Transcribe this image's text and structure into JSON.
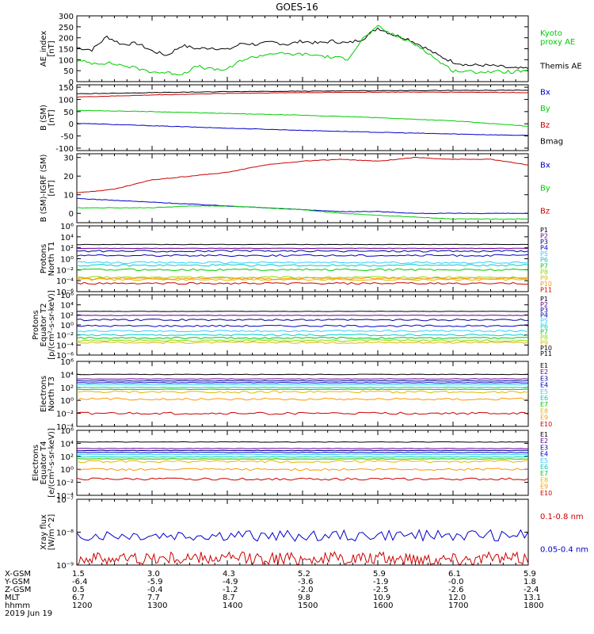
{
  "title": "GOES-16",
  "colors": {
    "black": "#000000",
    "blue": "#0000cc",
    "green": "#00cc00",
    "red": "#cc0000",
    "cyan": "#00cccc",
    "teal": "#009999",
    "yellow": "#cccc00",
    "orange": "#ff9900",
    "purple": "#660099",
    "darkblue": "#000099",
    "lightblue": "#33ccff",
    "lime": "#88dd00",
    "gold": "#ddbb00"
  },
  "x_ticks": {
    "hhmm": [
      "1200",
      "1300",
      "1400",
      "1500",
      "1600",
      "1700",
      "1800"
    ],
    "minor_per_major": 6
  },
  "ephemeris": {
    "row_labels": [
      "X-GSM",
      "Y-GSM",
      "Z-GSM",
      "MLT",
      "hhmm"
    ],
    "columns": [
      [
        "1.5",
        "-6.4",
        "0.5",
        "6.7",
        "1200"
      ],
      [
        "3.0",
        "-5.9",
        "-0.4",
        "7.7",
        "1300"
      ],
      [
        "4.3",
        "-4.9",
        "-1.2",
        "8.7",
        "1400"
      ],
      [
        "5.2",
        "-3.6",
        "-2.0",
        "9.8",
        "1500"
      ],
      [
        "5.9",
        "-1.9",
        "-2.5",
        "10.9",
        "1600"
      ],
      [
        "6.1",
        "-0.0",
        "-2.6",
        "12.0",
        "1700"
      ],
      [
        "5.9",
        "1.8",
        "-2.4",
        "13.1",
        "1800"
      ]
    ],
    "date": "2019 Jun 19"
  },
  "chart_data": [
    {
      "type": "line",
      "panel": "AE index",
      "ylabel_lines": [
        "AE_index",
        "[nT]"
      ],
      "ylim": [
        0,
        300
      ],
      "y_tick_labels": [
        "0",
        "50",
        "100",
        "150",
        "200",
        "250",
        "300"
      ],
      "legend": [
        {
          "label_lines": [
            "Kyoto",
            "proxy AE"
          ],
          "color": "#00cc00"
        },
        {
          "label_lines": [
            "Themis AE"
          ],
          "color": "#000000"
        }
      ],
      "series": [
        {
          "name": "Themis AE",
          "color": "#000000",
          "x": [
            12.0,
            12.2,
            12.4,
            12.6,
            12.8,
            13.0,
            13.2,
            13.4,
            13.6,
            13.8,
            14.0,
            14.2,
            14.4,
            14.6,
            14.8,
            15.0,
            15.2,
            15.4,
            15.6,
            15.8,
            16.0,
            16.2,
            16.4,
            16.6,
            16.8,
            17.0,
            17.2,
            17.4,
            17.6,
            17.8,
            18.0
          ],
          "y": [
            155,
            145,
            205,
            170,
            175,
            140,
            120,
            165,
            150,
            155,
            145,
            175,
            170,
            180,
            170,
            185,
            175,
            185,
            175,
            195,
            245,
            215,
            195,
            160,
            120,
            90,
            75,
            75,
            70,
            60,
            60
          ]
        },
        {
          "name": "Kyoto proxy AE",
          "color": "#00cc00",
          "x": [
            12.0,
            12.2,
            12.4,
            12.6,
            12.8,
            13.0,
            13.2,
            13.4,
            13.6,
            13.8,
            14.0,
            14.2,
            14.4,
            14.6,
            14.8,
            15.0,
            15.2,
            15.4,
            15.6,
            15.8,
            16.0,
            16.2,
            16.4,
            16.6,
            16.8,
            17.0,
            17.2,
            17.4,
            17.6,
            17.8,
            18.0
          ],
          "y": [
            95,
            85,
            85,
            75,
            60,
            45,
            40,
            35,
            70,
            55,
            55,
            100,
            115,
            130,
            125,
            125,
            120,
            110,
            105,
            195,
            250,
            215,
            185,
            150,
            95,
            50,
            45,
            45,
            45,
            45,
            50
          ]
        }
      ]
    },
    {
      "type": "line",
      "panel": "B (SM)",
      "ylabel_lines": [
        "B (SM)",
        "[nT]"
      ],
      "ylim": [
        -110,
        160
      ],
      "y_tick_labels": [
        "-100",
        "-50",
        "0",
        "50",
        "100",
        "150"
      ],
      "legend": [
        {
          "label": "Bx",
          "color": "#0000cc"
        },
        {
          "label": "By",
          "color": "#00cc00"
        },
        {
          "label": "Bz",
          "color": "#cc0000"
        },
        {
          "label": "Bmag",
          "color": "#000000"
        }
      ],
      "series": [
        {
          "name": "Bx",
          "color": "#0000cc",
          "x": [
            12,
            13,
            14,
            15,
            16,
            17,
            18
          ],
          "y": [
            2,
            -8,
            -18,
            -27,
            -35,
            -42,
            -48
          ]
        },
        {
          "name": "By",
          "color": "#00cc00",
          "x": [
            12,
            13,
            14,
            15,
            16,
            17,
            18
          ],
          "y": [
            55,
            50,
            42,
            35,
            25,
            12,
            -10
          ]
        },
        {
          "name": "Bz",
          "color": "#cc0000",
          "x": [
            12,
            13,
            14,
            15,
            16,
            17,
            18
          ],
          "y": [
            110,
            118,
            125,
            128,
            130,
            130,
            128
          ]
        },
        {
          "name": "Bmag",
          "color": "#000000",
          "x": [
            12,
            13,
            14,
            15,
            16,
            17,
            18
          ],
          "y": [
            123,
            128,
            132,
            134,
            136,
            137,
            138
          ]
        }
      ]
    },
    {
      "type": "line",
      "panel": "B (SM)-IGRF (SM)",
      "ylabel_lines": [
        "B (SM)-IGRF (SM)",
        "[nT]"
      ],
      "ylim": [
        -5,
        32
      ],
      "y_tick_labels": [
        "0",
        "10",
        "20",
        "30"
      ],
      "legend": [
        {
          "label": "Bx",
          "color": "#0000cc"
        },
        {
          "label": "By",
          "color": "#00cc00"
        },
        {
          "label": "Bz",
          "color": "#cc0000"
        }
      ],
      "series": [
        {
          "name": "Bx",
          "color": "#0000cc",
          "x": [
            12,
            12.5,
            13,
            13.5,
            14,
            14.5,
            15,
            15.5,
            16,
            16.5,
            17,
            17.5,
            18
          ],
          "y": [
            8,
            7,
            6,
            5,
            4,
            3,
            2,
            1,
            1,
            0,
            0,
            0,
            0
          ]
        },
        {
          "name": "By",
          "color": "#00cc00",
          "x": [
            12,
            12.5,
            13,
            13.5,
            14,
            14.5,
            15,
            15.5,
            16,
            16.5,
            17,
            17.5,
            18
          ],
          "y": [
            3,
            3,
            3,
            4,
            4,
            3,
            2,
            0,
            -1,
            -2,
            -3,
            -3,
            -3
          ]
        },
        {
          "name": "Bz",
          "color": "#cc0000",
          "x": [
            12,
            12.5,
            13,
            13.5,
            14,
            14.5,
            15,
            15.5,
            16,
            16.5,
            17,
            17.5,
            18
          ],
          "y": [
            11,
            13,
            18,
            20,
            22,
            26,
            28,
            29,
            28,
            30,
            29,
            29,
            26
          ]
        }
      ]
    },
    {
      "type": "line",
      "panel": "Protons North T1",
      "y_scale": "log",
      "ylabel_lines": [
        "Protons",
        "North T1"
      ],
      "y_tick_labels": [
        "10⁶",
        "10⁴",
        "10²",
        "10⁰",
        "10⁻²",
        "10⁻⁴",
        "10⁻⁶"
      ],
      "legend": [
        "P1",
        "P2",
        "P3",
        "P4",
        "P5",
        "P6",
        "P7",
        "P8",
        "P9",
        "P10",
        "P11"
      ],
      "series": [
        {
          "name": "P1",
          "color": "#000000",
          "log10": 2.6
        },
        {
          "name": "P2",
          "color": "#660099",
          "log10": 1.9
        },
        {
          "name": "P3",
          "color": "#000099",
          "log10": 1.4
        },
        {
          "name": "P4",
          "color": "#0000cc",
          "log10": 0.6
        },
        {
          "name": "P5",
          "color": "#33ccff",
          "log10": -0.7
        },
        {
          "name": "P6",
          "color": "#00cccc",
          "log10": -1.2
        },
        {
          "name": "P7",
          "color": "#00cc00",
          "log10": -2.0
        },
        {
          "name": "P8",
          "color": "#88dd00",
          "log10": -3.4
        },
        {
          "name": "P9",
          "color": "#ddbb00",
          "log10": -3.8
        },
        {
          "name": "P10",
          "color": "#ff9900",
          "log10": -3.6
        },
        {
          "name": "P11",
          "color": "#cc0000",
          "log10": -4.5
        }
      ]
    },
    {
      "type": "line",
      "panel": "Protons Equator T2",
      "y_scale": "log",
      "ylabel_lines": [
        "Protons",
        "Equator T2",
        "[p/(cm²-s-sr-keV)]"
      ],
      "y_tick_labels": [
        "10⁶",
        "10⁴",
        "10²",
        "10⁰",
        "10⁻²",
        "10⁻⁴",
        "10⁻⁶"
      ],
      "legend": [
        "P1",
        "P2",
        "P3",
        "P4",
        "P5",
        "P6",
        "P7",
        "P8",
        "P9",
        "P10",
        "P11"
      ],
      "series": [
        {
          "name": "P1",
          "color": "#000000",
          "log10": 2.7
        },
        {
          "name": "P2",
          "color": "#660099",
          "log10": 1.9
        },
        {
          "name": "P3",
          "color": "#000099",
          "log10": 1.0
        },
        {
          "name": "P4",
          "color": "#0000cc",
          "log10": -0.2
        },
        {
          "name": "P5",
          "color": "#33ccff",
          "log10": -1.2
        },
        {
          "name": "P6",
          "color": "#00cccc",
          "log10": -2.0
        },
        {
          "name": "P7",
          "color": "#00cc00",
          "log10": -2.6
        },
        {
          "name": "P8",
          "color": "#88dd00",
          "log10": -3.1
        },
        {
          "name": "P9",
          "color": "#ddbb00",
          "log10": -3.5
        }
      ]
    },
    {
      "type": "line",
      "panel": "Electrons North T3",
      "y_scale": "log",
      "ylabel_lines": [
        "Electrons",
        "North T3"
      ],
      "y_tick_labels": [
        "10⁶",
        "10⁴",
        "10²",
        "10⁰",
        "10⁻²",
        "10⁻⁴"
      ],
      "legend": [
        "E1",
        "E2",
        "E3",
        "E4",
        "E5",
        "E6",
        "E7",
        "E8",
        "E9",
        "E10"
      ],
      "series": [
        {
          "name": "E1",
          "color": "#000000",
          "log10": 4.0
        },
        {
          "name": "E2",
          "color": "#660099",
          "log10": 3.3
        },
        {
          "name": "E3",
          "color": "#000099",
          "log10": 3.0
        },
        {
          "name": "E4",
          "color": "#0000cc",
          "log10": 2.7
        },
        {
          "name": "E5",
          "color": "#33ccff",
          "log10": 2.4
        },
        {
          "name": "E6",
          "color": "#00cccc",
          "log10": 2.0
        },
        {
          "name": "E7",
          "color": "#00cc00",
          "log10": 1.7
        },
        {
          "name": "E8",
          "color": "#ddbb00",
          "log10": 1.3
        },
        {
          "name": "E9",
          "color": "#ff9900",
          "log10": 0.2
        },
        {
          "name": "E10",
          "color": "#cc0000",
          "log10": -2.0
        }
      ]
    },
    {
      "type": "line",
      "panel": "Electrons Equator T4",
      "y_scale": "log",
      "ylabel_lines": [
        "Electrons",
        "Equator T4",
        "[e/(cm²-s-sr-keV)]"
      ],
      "y_tick_labels": [
        "10⁶",
        "10⁴",
        "10²",
        "10⁰",
        "10⁻²",
        "10⁻⁴"
      ],
      "legend": [
        "E1",
        "E2",
        "E3",
        "E4",
        "E5",
        "E6",
        "E7",
        "E8",
        "E9",
        "E10"
      ],
      "series": [
        {
          "name": "E1",
          "color": "#000000",
          "log10": 4.2
        },
        {
          "name": "E2",
          "color": "#660099",
          "log10": 3.2
        },
        {
          "name": "E3",
          "color": "#000099",
          "log10": 2.9
        },
        {
          "name": "E4",
          "color": "#0000cc",
          "log10": 2.6
        },
        {
          "name": "E5",
          "color": "#33ccff",
          "log10": 2.3
        },
        {
          "name": "E6",
          "color": "#00cccc",
          "log10": 1.9
        },
        {
          "name": "E7",
          "color": "#00cc00",
          "log10": 1.6
        },
        {
          "name": "E8",
          "color": "#ddbb00",
          "log10": 1.2
        },
        {
          "name": "E9",
          "color": "#ff9900",
          "log10": 0.0
        },
        {
          "name": "E10",
          "color": "#cc0000",
          "log10": -1.5
        }
      ]
    },
    {
      "type": "line",
      "panel": "Xray flux",
      "y_scale": "log",
      "ylabel_lines": [
        "Xray flux",
        "[W/m^2]"
      ],
      "y_tick_labels": [
        "10⁻⁷",
        "10⁻⁸",
        "10⁻⁹"
      ],
      "legend": [
        {
          "label": "0.1-0.8 nm",
          "color": "#cc0000"
        },
        {
          "label": "0.05-0.4 nm",
          "color": "#0000cc"
        }
      ],
      "series": [
        {
          "name": "0.1-0.8 nm",
          "color": "#cc0000",
          "log10_range": [
            -9.0,
            -8.6
          ]
        },
        {
          "name": "0.05-0.4 nm",
          "color": "#0000cc",
          "log10": -8.1
        }
      ]
    }
  ]
}
